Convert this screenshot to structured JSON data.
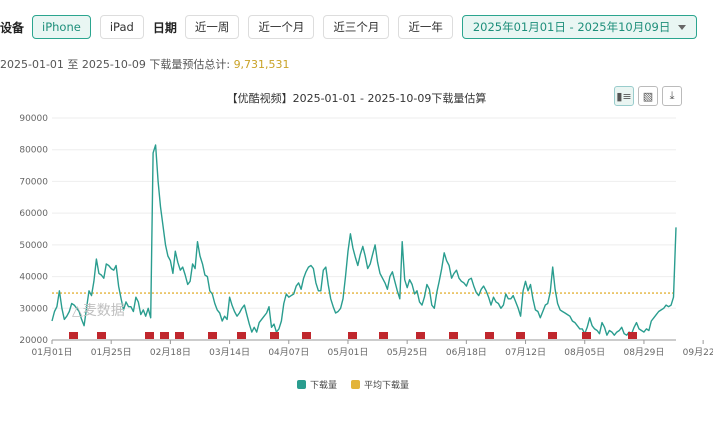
{
  "filters": {
    "device_label": "设备",
    "devices": [
      "iPhone",
      "iPad"
    ],
    "active_device": "iPhone",
    "date_label": "日期",
    "quick_ranges": [
      "近一周",
      "近一个月",
      "近三个月",
      "近一年"
    ],
    "date_range": "2025年01月01日 - 2025年10月09日"
  },
  "summary": {
    "text": "2025-01-01 至 2025-10-09 下载量预估总计:",
    "total": "9,731,531"
  },
  "watermark": "△麦数据",
  "colors": {
    "series": "#2a9d8f",
    "average": "#e3b43a",
    "marker": "#c0272d",
    "accent": "#2ba58f"
  },
  "chart_data": {
    "type": "line",
    "title": "【优酷视频】2025-01-01 - 2025-10-09下载量估算",
    "ylim": [
      20000,
      90000
    ],
    "yticks": [
      20000,
      30000,
      40000,
      50000,
      60000,
      70000,
      80000,
      90000
    ],
    "xticks": [
      "01月01日",
      "01月25日",
      "02月18日",
      "03月14日",
      "04月07日",
      "05月01日",
      "05月25日",
      "06月18日",
      "07月12日",
      "08月05日",
      "08月29日",
      "09月22日"
    ],
    "average": 34800,
    "legend": [
      "下载量",
      "平均下载量"
    ],
    "series": [
      {
        "name": "下载量",
        "day_start": 0,
        "values": [
          26000,
          29000,
          30500,
          35500,
          30000,
          26500,
          27500,
          29000,
          31500,
          31000,
          30000,
          29000,
          26500,
          24500,
          30000,
          35500,
          34000,
          38500,
          45500,
          41000,
          40500,
          39500,
          44000,
          43500,
          42500,
          42000,
          43500,
          37000,
          33000,
          29500,
          32000,
          30500,
          30500,
          29000,
          33500,
          32000,
          28000,
          29500,
          27500,
          30000,
          27000,
          79000,
          81500,
          70000,
          62000,
          56000,
          50000,
          46500,
          45000,
          41000,
          48000,
          44500,
          42000,
          43000,
          40500,
          37500,
          38500,
          44000,
          42500,
          51000,
          46500,
          44000,
          40500,
          40000,
          35500,
          34500,
          31500,
          29500,
          28500,
          26000,
          27500,
          26500,
          33500,
          31000,
          29000,
          27500,
          28500,
          30000,
          31000,
          28000,
          25000,
          22500,
          24000,
          22500,
          25500,
          26500,
          27500,
          28500,
          30500,
          24000,
          25000,
          22500,
          23500,
          26000,
          31500,
          34500,
          33500,
          34000,
          34500,
          37000,
          38000,
          36000,
          39500,
          41500,
          43000,
          43500,
          42500,
          38000,
          35500,
          35500,
          42000,
          43000,
          37500,
          33000,
          30500,
          28500,
          29000,
          30000,
          33000,
          40000,
          48000,
          53500,
          49000,
          46000,
          43500,
          47000,
          49500,
          46500,
          42500,
          44000,
          47000,
          50000,
          44500,
          41000,
          39500,
          38000,
          36000,
          40000,
          41500,
          38500,
          35500,
          33000,
          51000,
          39000,
          36500,
          39000,
          37500,
          34500,
          35500,
          32000,
          31000,
          33500,
          37500,
          36000,
          31000,
          30000,
          35000,
          38500,
          42500,
          47500,
          45000,
          43500,
          39500,
          41000,
          42000,
          39500,
          38500,
          38000,
          37000,
          39000,
          39500,
          37000,
          35000,
          34000,
          36000,
          37000,
          35500,
          33500,
          31000,
          33500,
          32000,
          31500,
          30000,
          31000,
          34500,
          33000,
          33000,
          34000,
          32000,
          30000,
          27500,
          35500,
          38500,
          35500,
          37500,
          33000,
          29500,
          29000,
          27000,
          29000,
          31000,
          31500,
          35000,
          43000,
          36000,
          31500,
          29500,
          29000,
          28500,
          28000,
          27500,
          26000,
          25500,
          24500,
          23500,
          23500,
          22000,
          24000,
          27000,
          24500,
          23500,
          23000,
          22000,
          25500,
          24000,
          21500,
          23000,
          22500,
          21500,
          22500,
          23000,
          24000,
          22000,
          21500,
          22500,
          22000,
          24000,
          25500,
          23500,
          23000,
          22500,
          23500,
          23000,
          26000,
          27000,
          28000,
          29000,
          29500,
          30000,
          31000,
          30500,
          31000,
          33500,
          55500
        ]
      }
    ]
  }
}
